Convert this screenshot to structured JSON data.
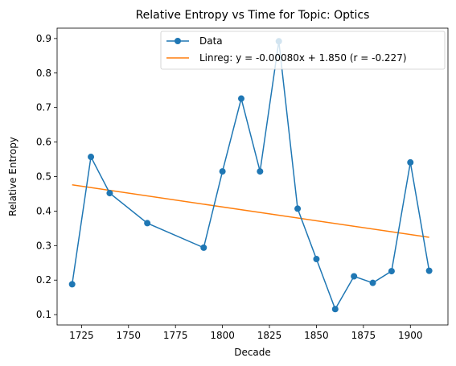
{
  "chart_data": {
    "type": "line",
    "title": "Relative Entropy vs Time for Topic: Optics",
    "xlabel": "Decade",
    "ylabel": "Relative Entropy",
    "xlim": [
      1712,
      1920
    ],
    "ylim": [
      0.07,
      0.93
    ],
    "xticks": [
      1725,
      1750,
      1775,
      1800,
      1825,
      1850,
      1875,
      1900
    ],
    "yticks": [
      0.1,
      0.2,
      0.3,
      0.4,
      0.5,
      0.6,
      0.7,
      0.8,
      0.9
    ],
    "grid": false,
    "legend_position": "top-right",
    "series": [
      {
        "name": "Data",
        "type": "line-marker",
        "color": "#1f77b4",
        "x": [
          1720,
          1730,
          1740,
          1760,
          1790,
          1800,
          1810,
          1820,
          1830,
          1840,
          1850,
          1860,
          1870,
          1880,
          1890,
          1900,
          1910
        ],
        "y": [
          0.188,
          0.557,
          0.452,
          0.365,
          0.294,
          0.515,
          0.726,
          0.515,
          0.892,
          0.407,
          0.261,
          0.116,
          0.211,
          0.192,
          0.226,
          0.541,
          0.227
        ]
      },
      {
        "name": "Linreg: y = -0.00080x + 1.850 (r = -0.227)",
        "type": "line",
        "color": "#ff7f0e",
        "x": [
          1720,
          1910
        ],
        "y": [
          0.476,
          0.324
        ]
      }
    ]
  }
}
